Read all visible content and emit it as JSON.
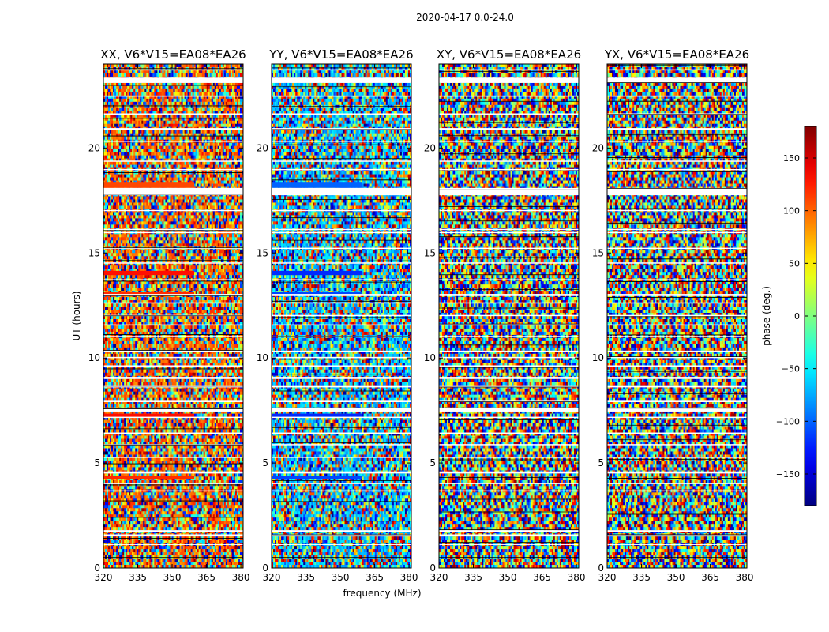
{
  "chart_data": {
    "type": "heatmap",
    "suptitle": "2020-04-17 0.0-24.0",
    "xlabel": "frequency (MHz)",
    "ylabel": "UT (hours)",
    "xlim": [
      320,
      381
    ],
    "ylim": [
      0,
      24
    ],
    "xticks": [
      320,
      335,
      350,
      365,
      380
    ],
    "xtick_labels": [
      "320",
      "335",
      "350",
      "365",
      "380"
    ],
    "yticks": [
      0,
      5,
      10,
      15,
      20
    ],
    "ytick_labels": [
      "0",
      "5",
      "10",
      "15",
      "20"
    ],
    "colormap": "jet",
    "panels": [
      {
        "title": "XX, V6*V15=EA08*EA26",
        "pol": "XX",
        "bias": 100
      },
      {
        "title": "YY, V6*V15=EA08*EA26",
        "pol": "YY",
        "bias": -70
      },
      {
        "title": "XY, V6*V15=EA08*EA26",
        "pol": "XY",
        "bias": 0
      },
      {
        "title": "YX, V6*V15=EA08*EA26",
        "pol": "YX",
        "bias": 0
      }
    ],
    "colorbar": {
      "label": "phase (deg.)",
      "range": [
        -180,
        180
      ],
      "ticks": [
        150,
        100,
        50,
        0,
        -50,
        -100,
        -150
      ],
      "tick_labels": [
        "150",
        "100",
        "50",
        "0",
        "−50",
        "−100",
        "−150"
      ]
    },
    "flagged_bands_hours": [
      [
        1.1,
        1.15
      ],
      [
        1.5,
        1.6
      ],
      [
        1.7,
        1.8
      ],
      [
        3.65,
        3.7
      ],
      [
        4.0,
        4.05
      ],
      [
        4.5,
        4.6
      ],
      [
        5.25,
        5.3
      ],
      [
        5.85,
        5.9
      ],
      [
        6.4,
        6.45
      ],
      [
        7.15,
        7.2
      ],
      [
        7.45,
        7.6
      ],
      [
        7.9,
        8.0
      ],
      [
        8.6,
        8.7
      ],
      [
        9.0,
        9.1
      ],
      [
        9.6,
        9.65
      ],
      [
        10.0,
        10.05
      ],
      [
        10.3,
        10.35
      ],
      [
        11.0,
        11.05
      ],
      [
        11.55,
        11.6
      ],
      [
        12.0,
        12.05
      ],
      [
        12.6,
        12.65
      ],
      [
        12.95,
        13.05
      ],
      [
        13.7,
        13.75
      ],
      [
        14.5,
        14.55
      ],
      [
        15.2,
        15.25
      ],
      [
        15.95,
        16.0
      ],
      [
        16.1,
        16.15
      ],
      [
        17.0,
        17.05
      ],
      [
        17.75,
        18.1
      ],
      [
        18.95,
        19.0
      ],
      [
        19.35,
        19.4
      ],
      [
        20.3,
        20.35
      ],
      [
        20.85,
        20.95
      ],
      [
        21.6,
        21.65
      ],
      [
        22.45,
        22.5
      ],
      [
        23.1,
        23.35
      ],
      [
        23.7,
        23.75
      ]
    ],
    "strong_phase_bands_hours": [
      {
        "range": [
          13.95,
          14.15
        ],
        "phase": 130
      },
      {
        "range": [
          13.0,
          13.15
        ],
        "phase": 120
      },
      {
        "range": [
          18.1,
          18.35
        ],
        "phase": 110
      },
      {
        "range": [
          7.2,
          7.35
        ],
        "phase": 130
      },
      {
        "range": [
          4.25,
          4.4
        ],
        "phase": 120
      }
    ]
  }
}
